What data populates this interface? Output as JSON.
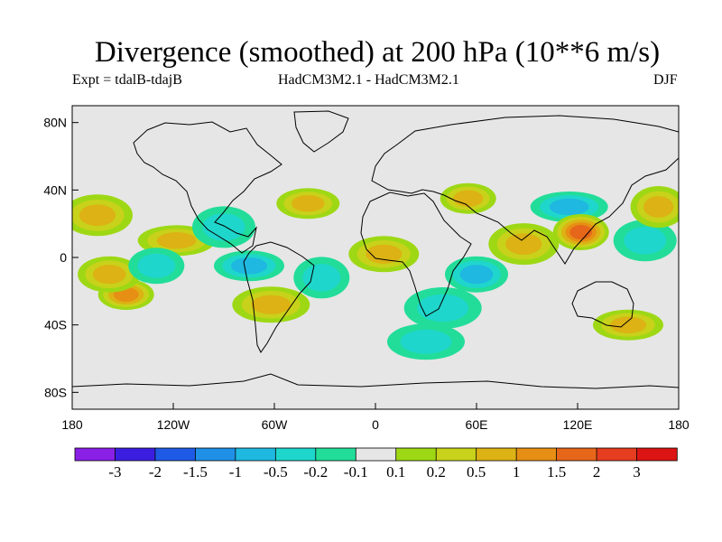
{
  "header": {
    "title": "Divergence (smoothed) at 200 hPa (10**6 m/s)",
    "expt": "Expt = tdalB-tdajB",
    "model": "HadCM3M2.1 - HadCM3M2.1",
    "season": "DJF"
  },
  "chart_data": {
    "type": "heatmap",
    "title": "Divergence (smoothed) at 200 hPa (10**6 m/s)",
    "units": "10**6 m/s",
    "projection": "cylindrical equidistant, longitude -180 to 180, latitude -90 to 90",
    "x_ticks": [
      {
        "value": -180,
        "label": "180"
      },
      {
        "value": -120,
        "label": "120W"
      },
      {
        "value": -60,
        "label": "60W"
      },
      {
        "value": 0,
        "label": "0"
      },
      {
        "value": 60,
        "label": "60E"
      },
      {
        "value": 120,
        "label": "120E"
      },
      {
        "value": 180,
        "label": "180"
      }
    ],
    "y_ticks": [
      {
        "value": 80,
        "label": "80N"
      },
      {
        "value": 40,
        "label": "40N"
      },
      {
        "value": 0,
        "label": "0"
      },
      {
        "value": -40,
        "label": "40S"
      },
      {
        "value": -80,
        "label": "80S"
      }
    ],
    "colorbar": {
      "levels": [
        "-3",
        "-2",
        "-1.5",
        "-1",
        "-0.5",
        "-0.2",
        "-0.1",
        "0.1",
        "0.2",
        "0.5",
        "1",
        "1.5",
        "2",
        "3"
      ],
      "colors": [
        "#8a1fe6",
        "#3b1fe0",
        "#1f5ae6",
        "#1f90e6",
        "#1fb8e0",
        "#1fd6cc",
        "#22dd99",
        "#e6e6e6",
        "#9ed815",
        "#c8d21a",
        "#dcb214",
        "#e68f14",
        "#e6661a",
        "#e63c1f",
        "#dc1414"
      ]
    },
    "features": [
      {
        "lon": -148,
        "lat": -22,
        "value": 1.2
      },
      {
        "lon": -158,
        "lat": -10,
        "value": 0.7
      },
      {
        "lon": -165,
        "lat": 25,
        "value": 0.8
      },
      {
        "lon": -118,
        "lat": 10,
        "value": 0.5
      },
      {
        "lon": -130,
        "lat": -5,
        "value": -0.4
      },
      {
        "lon": -90,
        "lat": 18,
        "value": -0.3
      },
      {
        "lon": -75,
        "lat": -5,
        "value": -0.6
      },
      {
        "lon": -62,
        "lat": -28,
        "value": 0.6
      },
      {
        "lon": -32,
        "lat": -12,
        "value": -0.3
      },
      {
        "lon": -40,
        "lat": 32,
        "value": 0.5
      },
      {
        "lon": 5,
        "lat": 2,
        "value": 0.8
      },
      {
        "lon": 40,
        "lat": -30,
        "value": -0.3
      },
      {
        "lon": 55,
        "lat": 35,
        "value": 0.5
      },
      {
        "lon": 60,
        "lat": -10,
        "value": -0.7
      },
      {
        "lon": 88,
        "lat": 8,
        "value": 0.6
      },
      {
        "lon": 115,
        "lat": 30,
        "value": -0.5
      },
      {
        "lon": 122,
        "lat": 15,
        "value": 1.6
      },
      {
        "lon": 160,
        "lat": 10,
        "value": -0.3
      },
      {
        "lon": 150,
        "lat": -40,
        "value": 0.6
      },
      {
        "lon": 30,
        "lat": -50,
        "value": -0.4
      },
      {
        "lon": 168,
        "lat": 30,
        "value": 0.5
      }
    ]
  }
}
